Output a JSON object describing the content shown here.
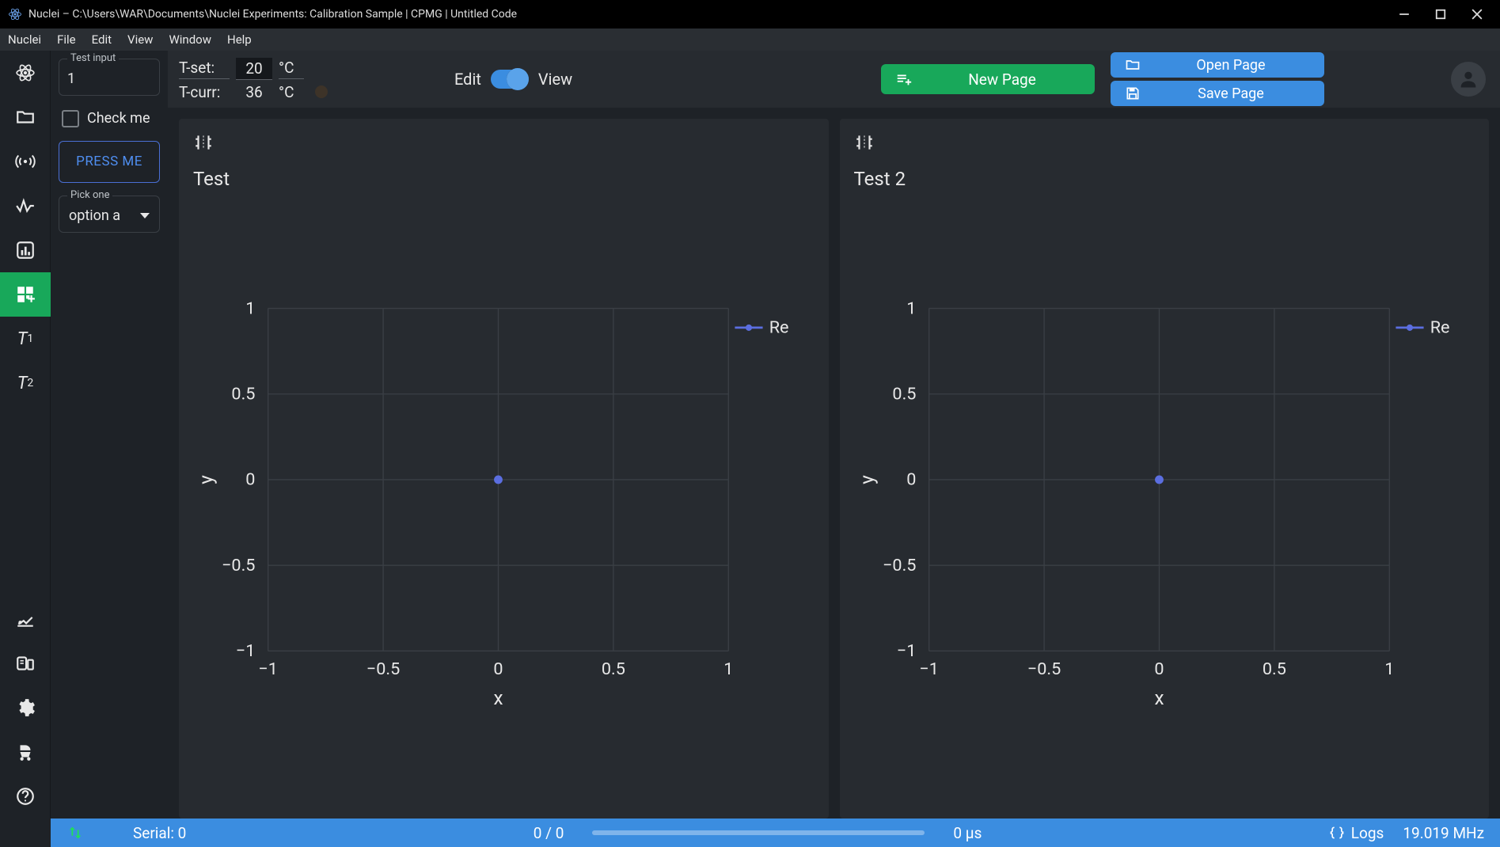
{
  "window": {
    "title": "Nuclei – C:\\Users\\WAR\\Documents\\Nuclei Experiments: Calibration Sample | CPMG | Untitled Code"
  },
  "menubar": [
    "Nuclei",
    "File",
    "Edit",
    "View",
    "Window",
    "Help"
  ],
  "sidebar_icons": [
    {
      "name": "atom-icon",
      "active": false
    },
    {
      "name": "folder-icon",
      "active": false
    },
    {
      "name": "signal-icon",
      "active": false
    },
    {
      "name": "wave-icon",
      "active": false
    },
    {
      "name": "chart-icon",
      "active": false
    },
    {
      "name": "dashboard-icon",
      "active": true
    },
    {
      "name": "t1-icon",
      "text": "T1",
      "active": false
    },
    {
      "name": "t2-icon",
      "text": "T2",
      "active": false
    }
  ],
  "sidebar_bottom_icons": [
    {
      "name": "dig-icon"
    },
    {
      "name": "device-icon"
    },
    {
      "name": "settings-gear-icon"
    },
    {
      "name": "stroller-icon"
    },
    {
      "name": "help-icon"
    }
  ],
  "top_controls": {
    "temp_set_label": "T-set:",
    "temp_set_value": "20",
    "temp_set_unit": "°C",
    "temp_curr_label": "T-curr:",
    "temp_curr_value": "36",
    "temp_curr_unit": "°C",
    "mode_left": "Edit",
    "mode_right": "View",
    "new_page_label": "New Page",
    "open_page_label": "Open Page",
    "save_page_label": "Save Page"
  },
  "left_panel": {
    "test_input_legend": "Test input",
    "test_input_value": "1",
    "check_label": "Check me",
    "press_label": "PRESS ME",
    "pick_legend": "Pick one",
    "pick_value": "option a"
  },
  "charts": [
    {
      "title": "Test",
      "type": "scatter",
      "xlabel": "x",
      "ylabel": "y",
      "xlim": [
        -1,
        1
      ],
      "ylim": [
        -1,
        1
      ],
      "xticks": [
        -1,
        -0.5,
        0,
        0.5,
        1
      ],
      "yticks": [
        -1,
        -0.5,
        0,
        0.5,
        1
      ],
      "series": [
        {
          "name": "Re",
          "color": "#5b6ee0",
          "points": [
            [
              0,
              0
            ]
          ]
        }
      ],
      "background_color": "#272b30",
      "grid_color": "#3a3f45"
    },
    {
      "title": "Test 2",
      "type": "scatter",
      "xlabel": "x",
      "ylabel": "y",
      "xlim": [
        -1,
        1
      ],
      "ylim": [
        -1,
        1
      ],
      "xticks": [
        -1,
        -0.5,
        0,
        0.5,
        1
      ],
      "yticks": [
        -1,
        -0.5,
        0,
        0.5,
        1
      ],
      "series": [
        {
          "name": "Re",
          "color": "#5b6ee0",
          "points": [
            [
              0,
              0
            ]
          ]
        }
      ],
      "background_color": "#272b30",
      "grid_color": "#3a3f45"
    }
  ],
  "statusbar": {
    "serial": "Serial: 0",
    "progress": "0 / 0",
    "time": "0 µs",
    "logs": "Logs",
    "freq": "19.019 MHz"
  }
}
